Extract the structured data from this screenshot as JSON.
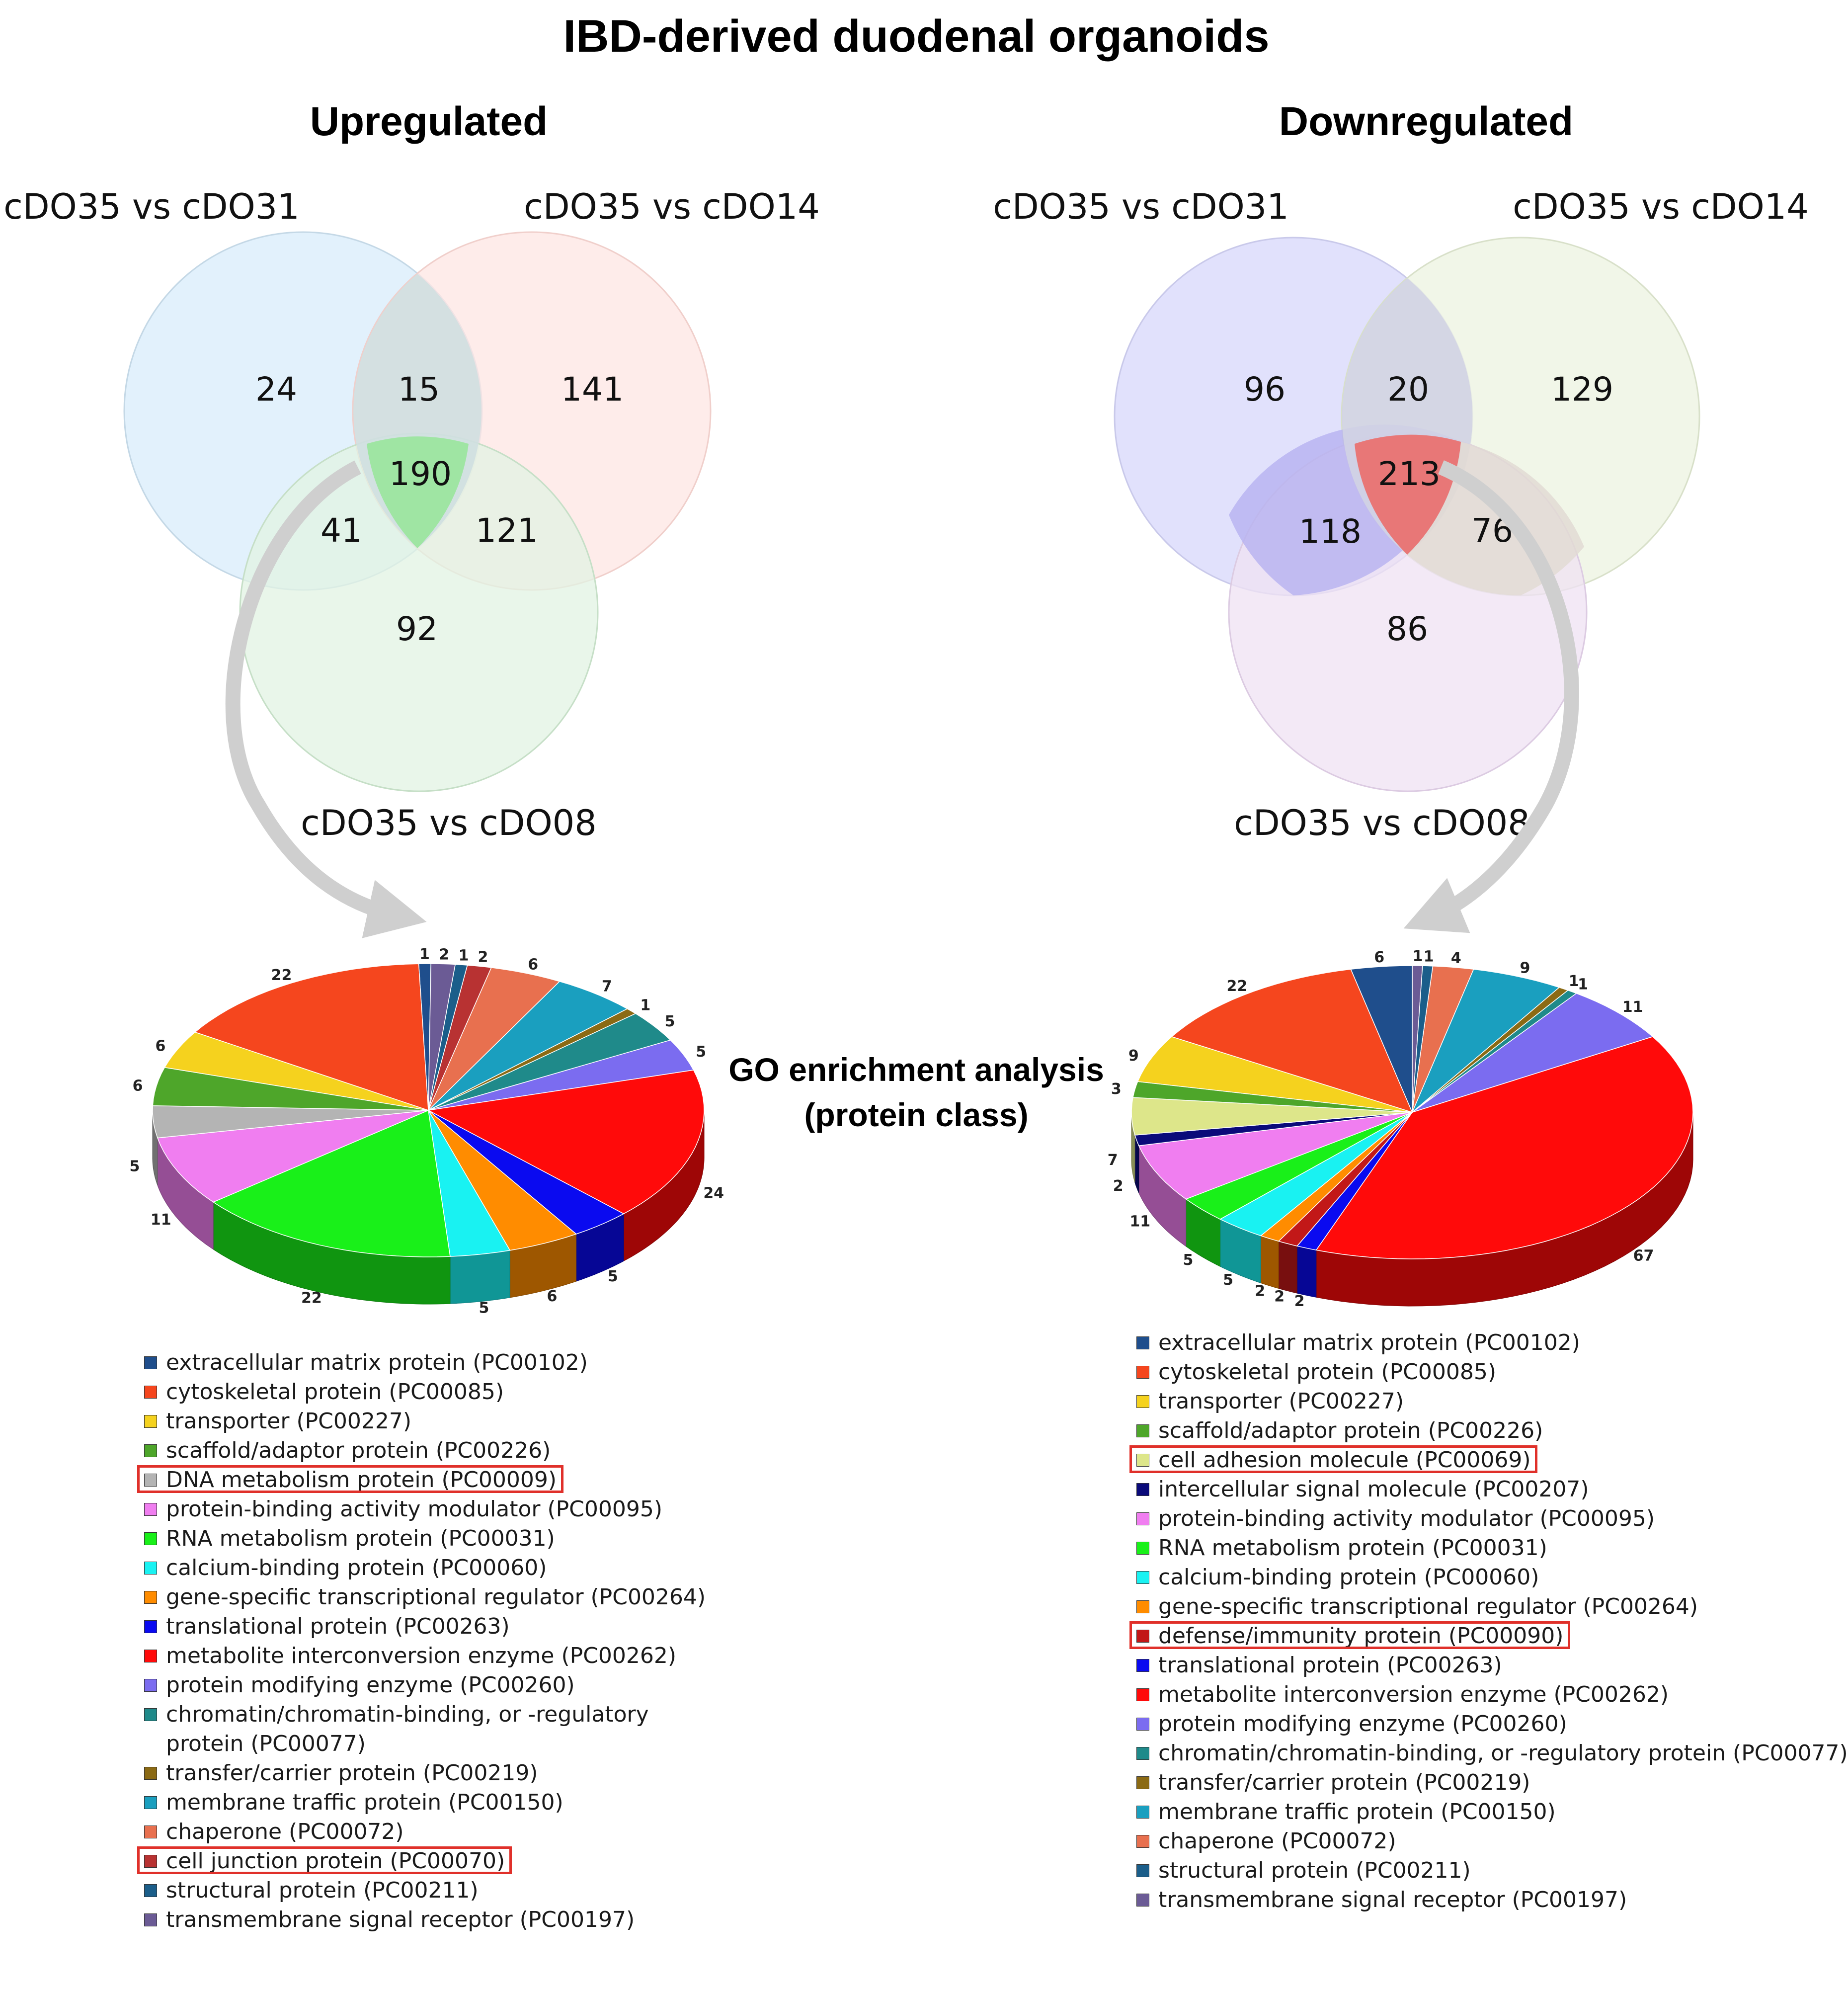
{
  "title": "IBD-derived duodenal organoids",
  "middle_label": "GO enrichment analysis (protein class)",
  "middle_label_lines": [
    "GO enrichment analysis",
    "(protein class)"
  ],
  "chart_data": [
    {
      "type": "venn",
      "panel": "left",
      "title": "Upregulated",
      "sets": [
        "cDO35 vs cDO31",
        "cDO35 vs cDO14",
        "cDO35 vs cDO08"
      ],
      "set_colors": [
        "#dbeefb",
        "#fde6e3",
        "#e2f3e3"
      ],
      "center_color": "#9fe5a3",
      "regions": {
        "A_only": 24,
        "AB": 15,
        "B_only": 141,
        "ABC": 190,
        "AC": 41,
        "BC": 121,
        "C_only": 92
      }
    },
    {
      "type": "venn",
      "panel": "right",
      "title": "Downregulated",
      "sets": [
        "cDO35 vs cDO31",
        "cDO35 vs cDO14",
        "cDO35 vs cDO08"
      ],
      "set_colors": [
        "#dcdcfb",
        "#eef4e2",
        "#efe2f3"
      ],
      "center_color": "#e87777",
      "regions": {
        "A_only": 96,
        "AB": 20,
        "B_only": 129,
        "ABC": 213,
        "AC": 118,
        "BC": 76,
        "C_only": 86
      }
    },
    {
      "type": "pie",
      "panel": "left",
      "title": "",
      "slices": [
        {
          "label": "extracellular matrix protein (PC00102)",
          "value": 1,
          "color": "#1f4e8c"
        },
        {
          "label": "transmembrane signal receptor (PC00197)",
          "value": 2,
          "color": "#6b5b95"
        },
        {
          "label": "structural protein (PC00211)",
          "value": 1,
          "color": "#1b5e8a"
        },
        {
          "label": "cell junction protein (PC00070)",
          "value": 2,
          "color": "#b83232"
        },
        {
          "label": "chaperone (PC00072)",
          "value": 6,
          "color": "#e8704f"
        },
        {
          "label": "membrane traffic protein (PC00150)",
          "value": 7,
          "color": "#1a9fbf"
        },
        {
          "label": "transfer/carrier protein (PC00219)",
          "value": 1,
          "color": "#8b6a14"
        },
        {
          "label": "chromatin/chromatin-binding, or -regulatory protein (PC00077)",
          "value": 5,
          "color": "#1f8a8a"
        },
        {
          "label": "protein modifying enzyme (PC00260)",
          "value": 5,
          "color": "#7b6cf0"
        },
        {
          "label": "metabolite interconversion enzyme (PC00262)",
          "value": 24,
          "color": "#ff0a0a"
        },
        {
          "label": "translational protein (PC00263)",
          "value": 5,
          "color": "#0a0af0"
        },
        {
          "label": "gene-specific transcriptional regulator (PC00264)",
          "value": 6,
          "color": "#ff8c00"
        },
        {
          "label": "calcium-binding protein (PC00060)",
          "value": 5,
          "color": "#19f2f2"
        },
        {
          "label": "RNA metabolism protein (PC00031)",
          "value": 22,
          "color": "#19f019"
        },
        {
          "label": "protein-binding activity modulator (PC00095)",
          "value": 11,
          "color": "#f07ef0"
        },
        {
          "label": "DNA metabolism protein (PC00009)",
          "value": 5,
          "color": "#b4b4b4"
        },
        {
          "label": "scaffold/adaptor protein (PC00226)",
          "value": 6,
          "color": "#4ea62a"
        },
        {
          "label": "transporter (PC00227)",
          "value": 6,
          "color": "#f5d21e"
        },
        {
          "label": "cytoskeletal protein (PC00085)",
          "value": 22,
          "color": "#f5461e"
        }
      ]
    },
    {
      "type": "pie",
      "panel": "right",
      "title": "",
      "slices": [
        {
          "label": "transmembrane signal receptor (PC00197)",
          "value": 1,
          "color": "#6b5b95"
        },
        {
          "label": "structural protein (PC00211)",
          "value": 1,
          "color": "#1b5e8a"
        },
        {
          "label": "chaperone (PC00072)",
          "value": 4,
          "color": "#e8704f"
        },
        {
          "label": "membrane traffic protein (PC00150)",
          "value": 9,
          "color": "#1a9fbf"
        },
        {
          "label": "transfer/carrier protein (PC00219)",
          "value": 1,
          "color": "#8b6a14"
        },
        {
          "label": "chromatin/chromatin-binding, or -regulatory protein (PC00077)",
          "value": 1,
          "color": "#1f8a8a"
        },
        {
          "label": "protein modifying enzyme (PC00260)",
          "value": 11,
          "color": "#7b6cf0"
        },
        {
          "label": "metabolite interconversion enzyme (PC00262)",
          "value": 67,
          "color": "#ff0a0a"
        },
        {
          "label": "translational protein (PC00263)",
          "value": 2,
          "color": "#0a0af0"
        },
        {
          "label": "defense/immunity protein (PC00090)",
          "value": 2,
          "color": "#c21818"
        },
        {
          "label": "gene-specific transcriptional regulator (PC00264)",
          "value": 2,
          "color": "#ff8c00"
        },
        {
          "label": "calcium-binding protein (PC00060)",
          "value": 5,
          "color": "#19f2f2"
        },
        {
          "label": "RNA metabolism protein (PC00031)",
          "value": 5,
          "color": "#19f019"
        },
        {
          "label": "protein-binding activity modulator (PC00095)",
          "value": 11,
          "color": "#f07ef0"
        },
        {
          "label": "intercellular signal molecule (PC00207)",
          "value": 2,
          "color": "#0a0a7a"
        },
        {
          "label": "cell adhesion molecule (PC00069)",
          "value": 7,
          "color": "#dde68a"
        },
        {
          "label": "scaffold/adaptor protein (PC00226)",
          "value": 3,
          "color": "#4ea62a"
        },
        {
          "label": "transporter (PC00227)",
          "value": 9,
          "color": "#f5d21e"
        },
        {
          "label": "cytoskeletal protein (PC00085)",
          "value": 22,
          "color": "#f5461e"
        },
        {
          "label": "extracellular matrix protein (PC00102)",
          "value": 6,
          "color": "#1f4e8c"
        }
      ]
    }
  ],
  "legends": {
    "left": [
      {
        "label": "extracellular matrix protein (PC00102)",
        "color": "#1f4e8c"
      },
      {
        "label": "cytoskeletal protein (PC00085)",
        "color": "#f5461e"
      },
      {
        "label": "transporter (PC00227)",
        "color": "#f5d21e"
      },
      {
        "label": "scaffold/adaptor protein (PC00226)",
        "color": "#4ea62a"
      },
      {
        "label": "DNA metabolism protein (PC00009)",
        "color": "#b4b4b4",
        "highlight": true
      },
      {
        "label": "protein-binding activity modulator (PC00095)",
        "color": "#f07ef0"
      },
      {
        "label": "RNA metabolism protein (PC00031)",
        "color": "#19f019"
      },
      {
        "label": "calcium-binding protein (PC00060)",
        "color": "#19f2f2"
      },
      {
        "label": "gene-specific transcriptional regulator (PC00264)",
        "color": "#ff8c00"
      },
      {
        "label": "translational protein (PC00263)",
        "color": "#0a0af0"
      },
      {
        "label": "metabolite interconversion enzyme (PC00262)",
        "color": "#ff0a0a"
      },
      {
        "label": "protein modifying enzyme (PC00260)",
        "color": "#7b6cf0"
      },
      {
        "label": "chromatin/chromatin-binding, or -regulatory protein (PC00077)",
        "color": "#1f8a8a",
        "wrap": true
      },
      {
        "label": "transfer/carrier protein (PC00219)",
        "color": "#8b6a14"
      },
      {
        "label": "membrane traffic protein (PC00150)",
        "color": "#1a9fbf"
      },
      {
        "label": "chaperone (PC00072)",
        "color": "#e8704f"
      },
      {
        "label": "cell junction protein (PC00070)",
        "color": "#b83232",
        "highlight": true
      },
      {
        "label": "structural protein (PC00211)",
        "color": "#1b5e8a"
      },
      {
        "label": "transmembrane signal receptor (PC00197)",
        "color": "#6b5b95"
      }
    ],
    "right": [
      {
        "label": "extracellular matrix protein (PC00102)",
        "color": "#1f4e8c"
      },
      {
        "label": "cytoskeletal protein (PC00085)",
        "color": "#f5461e"
      },
      {
        "label": "transporter (PC00227)",
        "color": "#f5d21e"
      },
      {
        "label": "scaffold/adaptor protein (PC00226)",
        "color": "#4ea62a"
      },
      {
        "label": "cell adhesion molecule (PC00069)",
        "color": "#dde68a",
        "highlight": true
      },
      {
        "label": "intercellular signal molecule (PC00207)",
        "color": "#0a0a7a"
      },
      {
        "label": "protein-binding activity modulator (PC00095)",
        "color": "#f07ef0"
      },
      {
        "label": "RNA metabolism protein (PC00031)",
        "color": "#19f019"
      },
      {
        "label": "calcium-binding protein (PC00060)",
        "color": "#19f2f2"
      },
      {
        "label": "gene-specific transcriptional regulator (PC00264)",
        "color": "#ff8c00"
      },
      {
        "label": "defense/immunity protein (PC00090)",
        "color": "#c21818",
        "highlight": true
      },
      {
        "label": "translational protein (PC00263)",
        "color": "#0a0af0"
      },
      {
        "label": "metabolite interconversion enzyme (PC00262)",
        "color": "#ff0a0a"
      },
      {
        "label": "protein modifying enzyme (PC00260)",
        "color": "#7b6cf0"
      },
      {
        "label": "chromatin/chromatin-binding, or -regulatory protein (PC00077)",
        "color": "#1f8a8a"
      },
      {
        "label": "transfer/carrier protein (PC00219)",
        "color": "#8b6a14"
      },
      {
        "label": "membrane traffic protein (PC00150)",
        "color": "#1a9fbf"
      },
      {
        "label": "chaperone (PC00072)",
        "color": "#e8704f"
      },
      {
        "label": "structural protein (PC00211)",
        "color": "#1b5e8a"
      },
      {
        "label": "transmembrane signal receptor (PC00197)",
        "color": "#6b5b95"
      }
    ]
  }
}
